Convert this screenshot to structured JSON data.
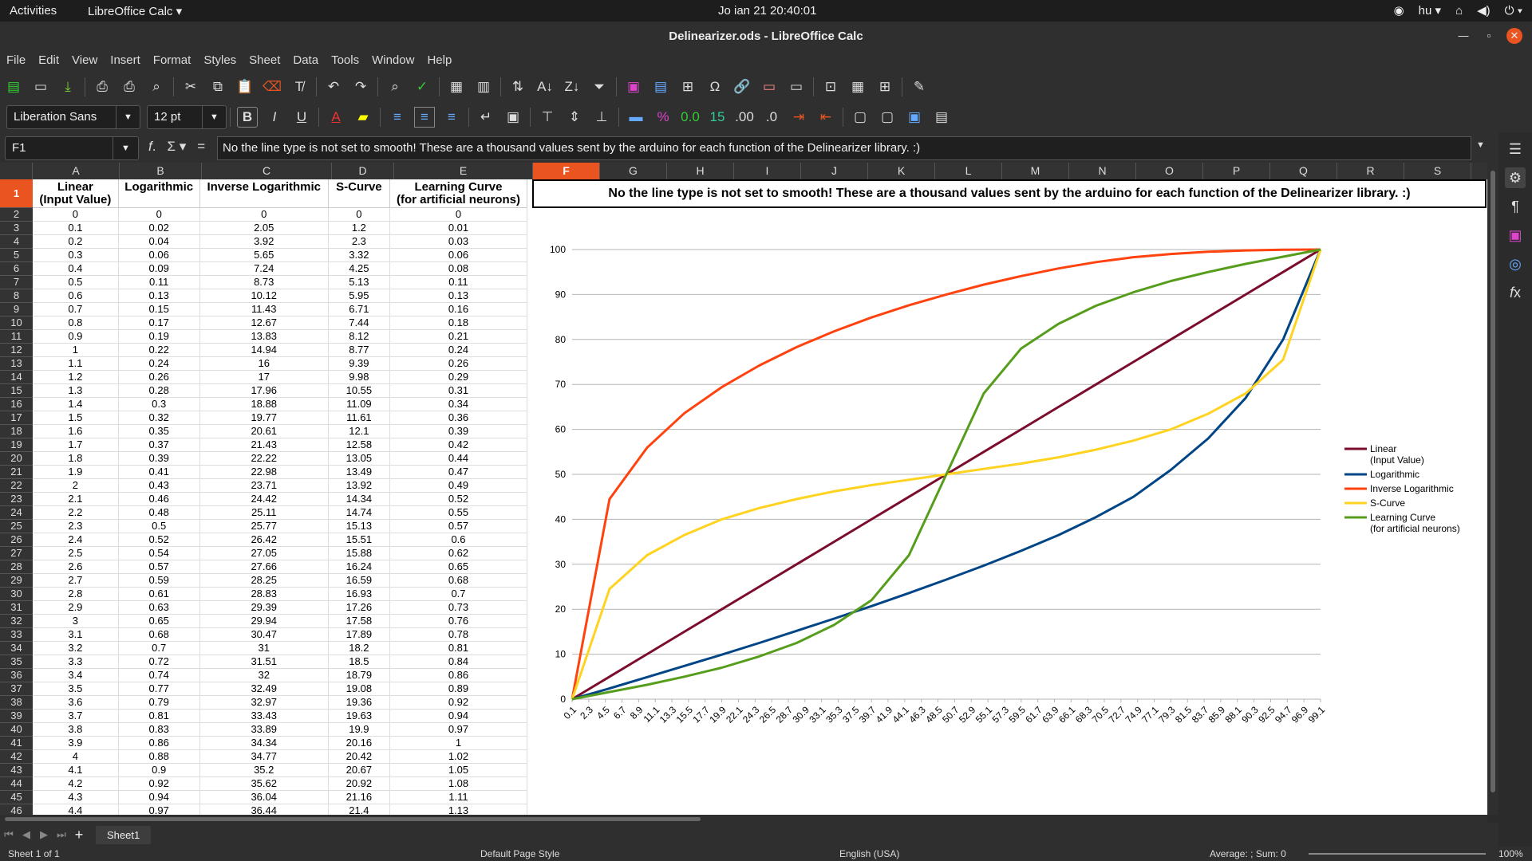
{
  "topbar": {
    "activities": "Activities",
    "app": "LibreOffice Calc ▾",
    "clock": "Jo ian 21  20:40:01",
    "lang": "hu ▾"
  },
  "window": {
    "title": "Delinearizer.ods - LibreOffice Calc"
  },
  "menu": [
    "File",
    "Edit",
    "View",
    "Insert",
    "Format",
    "Styles",
    "Sheet",
    "Data",
    "Tools",
    "Window",
    "Help"
  ],
  "toolbar": {
    "font_name": "Liberation Sans",
    "font_size": "12 pt",
    "bold": "B",
    "italic": "I",
    "underline": "U"
  },
  "formula": {
    "cell": "F1",
    "content": "No the line type is not set to smooth! These are a thousand values sent by the arduino for each function of the Delinearizer library. :)"
  },
  "columns": [
    "A",
    "B",
    "C",
    "D",
    "E",
    "F",
    "G",
    "H",
    "I",
    "J",
    "K",
    "L",
    "M",
    "N",
    "O",
    "P",
    "Q",
    "R",
    "S"
  ],
  "headers": [
    "Linear\n(Input Value)",
    "Logarithmic",
    "Inverse Logarithmic",
    "S-Curve",
    "Learning Curve\n(for artificial neurons)"
  ],
  "rows": [
    [
      "0",
      "0",
      "0",
      "0",
      "0"
    ],
    [
      "0.1",
      "0.02",
      "2.05",
      "1.2",
      "0.01"
    ],
    [
      "0.2",
      "0.04",
      "3.92",
      "2.3",
      "0.03"
    ],
    [
      "0.3",
      "0.06",
      "5.65",
      "3.32",
      "0.06"
    ],
    [
      "0.4",
      "0.09",
      "7.24",
      "4.25",
      "0.08"
    ],
    [
      "0.5",
      "0.11",
      "8.73",
      "5.13",
      "0.11"
    ],
    [
      "0.6",
      "0.13",
      "10.12",
      "5.95",
      "0.13"
    ],
    [
      "0.7",
      "0.15",
      "11.43",
      "6.71",
      "0.16"
    ],
    [
      "0.8",
      "0.17",
      "12.67",
      "7.44",
      "0.18"
    ],
    [
      "0.9",
      "0.19",
      "13.83",
      "8.12",
      "0.21"
    ],
    [
      "1",
      "0.22",
      "14.94",
      "8.77",
      "0.24"
    ],
    [
      "1.1",
      "0.24",
      "16",
      "9.39",
      "0.26"
    ],
    [
      "1.2",
      "0.26",
      "17",
      "9.98",
      "0.29"
    ],
    [
      "1.3",
      "0.28",
      "17.96",
      "10.55",
      "0.31"
    ],
    [
      "1.4",
      "0.3",
      "18.88",
      "11.09",
      "0.34"
    ],
    [
      "1.5",
      "0.32",
      "19.77",
      "11.61",
      "0.36"
    ],
    [
      "1.6",
      "0.35",
      "20.61",
      "12.1",
      "0.39"
    ],
    [
      "1.7",
      "0.37",
      "21.43",
      "12.58",
      "0.42"
    ],
    [
      "1.8",
      "0.39",
      "22.22",
      "13.05",
      "0.44"
    ],
    [
      "1.9",
      "0.41",
      "22.98",
      "13.49",
      "0.47"
    ],
    [
      "2",
      "0.43",
      "23.71",
      "13.92",
      "0.49"
    ],
    [
      "2.1",
      "0.46",
      "24.42",
      "14.34",
      "0.52"
    ],
    [
      "2.2",
      "0.48",
      "25.11",
      "14.74",
      "0.55"
    ],
    [
      "2.3",
      "0.5",
      "25.77",
      "15.13",
      "0.57"
    ],
    [
      "2.4",
      "0.52",
      "26.42",
      "15.51",
      "0.6"
    ],
    [
      "2.5",
      "0.54",
      "27.05",
      "15.88",
      "0.62"
    ],
    [
      "2.6",
      "0.57",
      "27.66",
      "16.24",
      "0.65"
    ],
    [
      "2.7",
      "0.59",
      "28.25",
      "16.59",
      "0.68"
    ],
    [
      "2.8",
      "0.61",
      "28.83",
      "16.93",
      "0.7"
    ],
    [
      "2.9",
      "0.63",
      "29.39",
      "17.26",
      "0.73"
    ],
    [
      "3",
      "0.65",
      "29.94",
      "17.58",
      "0.76"
    ],
    [
      "3.1",
      "0.68",
      "30.47",
      "17.89",
      "0.78"
    ],
    [
      "3.2",
      "0.7",
      "31",
      "18.2",
      "0.81"
    ],
    [
      "3.3",
      "0.72",
      "31.51",
      "18.5",
      "0.84"
    ],
    [
      "3.4",
      "0.74",
      "32",
      "18.79",
      "0.86"
    ],
    [
      "3.5",
      "0.77",
      "32.49",
      "19.08",
      "0.89"
    ],
    [
      "3.6",
      "0.79",
      "32.97",
      "19.36",
      "0.92"
    ],
    [
      "3.7",
      "0.81",
      "33.43",
      "19.63",
      "0.94"
    ],
    [
      "3.8",
      "0.83",
      "33.89",
      "19.9",
      "0.97"
    ],
    [
      "3.9",
      "0.86",
      "34.34",
      "20.16",
      "1"
    ],
    [
      "4",
      "0.88",
      "34.77",
      "20.42",
      "1.02"
    ],
    [
      "4.1",
      "0.9",
      "35.2",
      "20.67",
      "1.05"
    ],
    [
      "4.2",
      "0.92",
      "35.62",
      "20.92",
      "1.08"
    ],
    [
      "4.3",
      "0.94",
      "36.04",
      "21.16",
      "1.11"
    ],
    [
      "4.4",
      "0.97",
      "36.44",
      "21.4",
      "1.13"
    ]
  ],
  "chart_title": "No the line type is not set to smooth! These are a thousand values sent by the arduino for each function of the Delinearizer library. :)",
  "chart_data": {
    "type": "line",
    "ylim": [
      0,
      100
    ],
    "yticks": [
      "0",
      "10",
      "20",
      "30",
      "40",
      "50",
      "60",
      "70",
      "80",
      "90",
      "100"
    ],
    "xticks": [
      "0.1",
      "2.3",
      "4.5",
      "6.7",
      "8.9",
      "11.1",
      "13.3",
      "15.5",
      "17.7",
      "19.9",
      "22.1",
      "24.3",
      "26.5",
      "28.7",
      "30.9",
      "33.1",
      "35.3",
      "37.5",
      "39.7",
      "41.9",
      "44.1",
      "46.3",
      "48.5",
      "50.7",
      "52.9",
      "55.1",
      "57.3",
      "59.5",
      "61.7",
      "63.9",
      "66.1",
      "68.3",
      "70.5",
      "72.7",
      "74.9",
      "77.1",
      "79.3",
      "81.5",
      "83.7",
      "85.9",
      "88.1",
      "90.3",
      "92.5",
      "94.7",
      "96.9",
      "99.1"
    ],
    "x": [
      0,
      5,
      10,
      15,
      20,
      25,
      30,
      35,
      40,
      45,
      50,
      55,
      60,
      65,
      70,
      75,
      80,
      85,
      90,
      95,
      100
    ],
    "series": [
      {
        "name": "Linear\n(Input Value)",
        "color": "#7b0c2c",
        "values": [
          0,
          5,
          10,
          15,
          20,
          25,
          30,
          35,
          40,
          45,
          50,
          55,
          60,
          65,
          70,
          75,
          80,
          85,
          90,
          95,
          100
        ]
      },
      {
        "name": "Logarithmic",
        "color": "#004586",
        "values": [
          0,
          2.4,
          4.9,
          7.4,
          9.9,
          12.5,
          15.2,
          17.9,
          20.7,
          23.6,
          26.6,
          29.7,
          33,
          36.5,
          40.5,
          45,
          51,
          58,
          67,
          80,
          100
        ]
      },
      {
        "name": "Inverse Logarithmic",
        "color": "#ff420e",
        "values": [
          0,
          44.5,
          55.9,
          63.6,
          69.4,
          74.2,
          78.3,
          81.8,
          84.9,
          87.6,
          90,
          92.2,
          94.1,
          95.8,
          97.2,
          98.3,
          99,
          99.5,
          99.8,
          99.95,
          100
        ]
      },
      {
        "name": "S-Curve",
        "color": "#ffd320",
        "values": [
          0,
          24.5,
          32,
          36.5,
          40,
          42.5,
          44.5,
          46.2,
          47.6,
          48.8,
          50,
          51.2,
          52.4,
          53.8,
          55.5,
          57.5,
          60,
          63.5,
          68,
          75.5,
          100
        ]
      },
      {
        "name": "Learning Curve\n(for artificial neurons)",
        "color": "#579d1c",
        "values": [
          0,
          1.6,
          3.2,
          5,
          7,
          9.5,
          12.5,
          16.5,
          22,
          32,
          50,
          68,
          78,
          83.5,
          87.5,
          90.5,
          93,
          95,
          96.8,
          98.4,
          100
        ]
      }
    ]
  },
  "sheet_tab": "Sheet1",
  "status": {
    "sheet": "Sheet 1 of 1",
    "style": "Default Page Style",
    "lang": "English (USA)",
    "sum": "Average: ; Sum: 0",
    "zoom": "100%"
  }
}
